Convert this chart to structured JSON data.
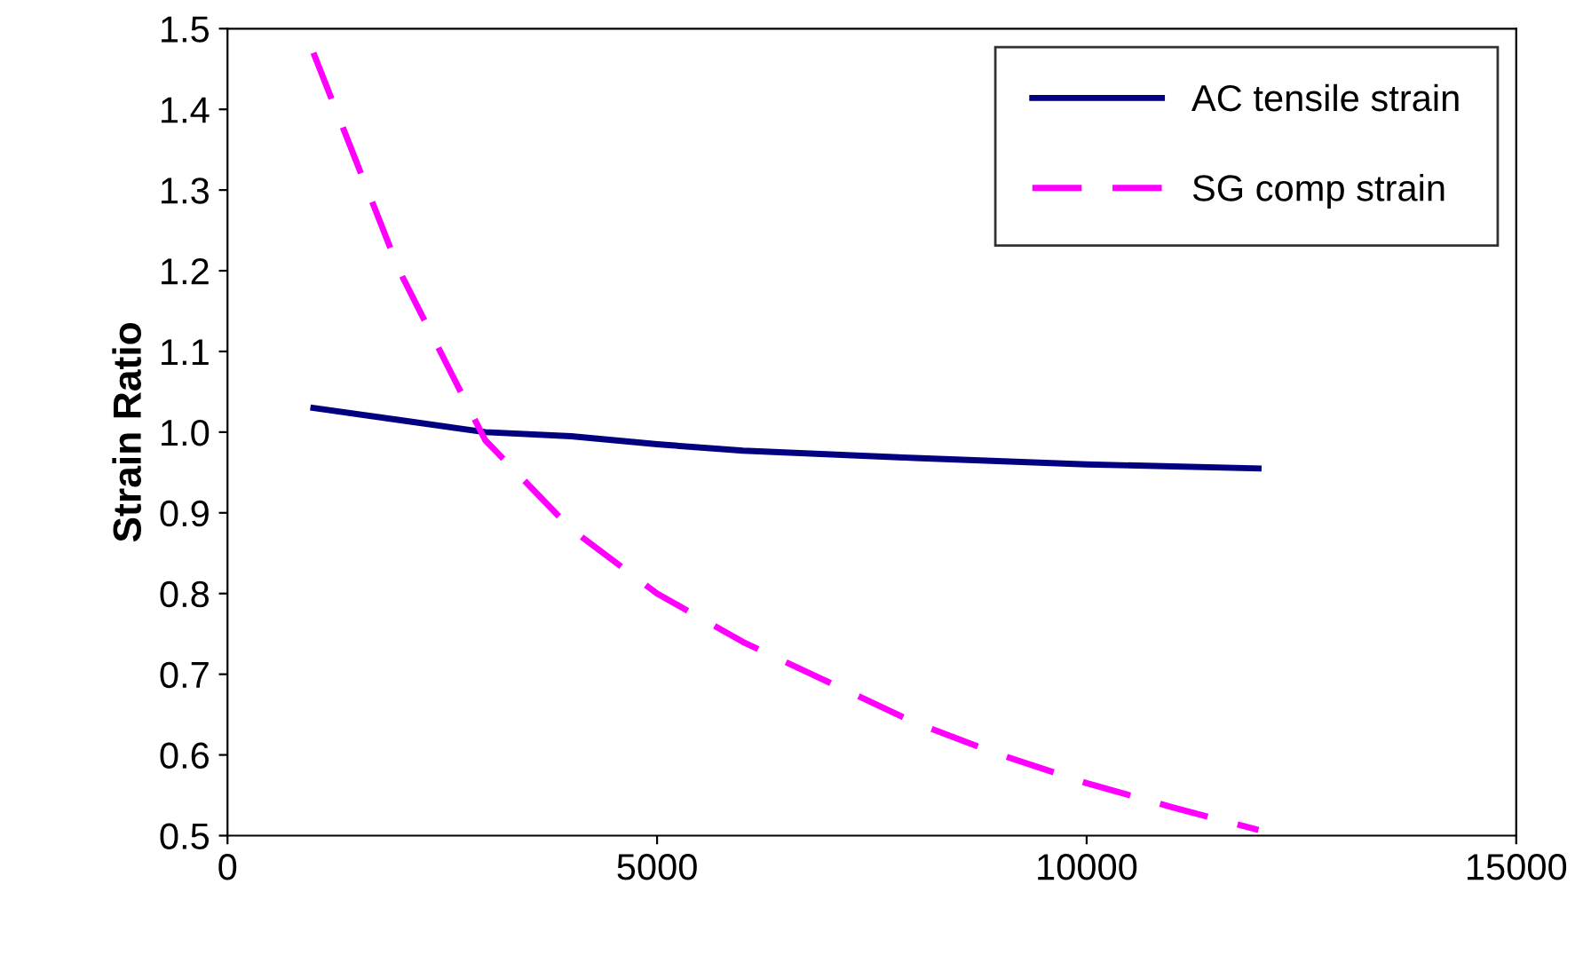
{
  "chart_data": {
    "type": "line",
    "ylabel": "Strain Ratio",
    "xlim": [
      0,
      15000
    ],
    "xticks": [
      0,
      5000,
      10000,
      15000
    ],
    "ylim": [
      0.5,
      1.5
    ],
    "yticks": [
      0.5,
      0.6,
      0.7,
      0.8,
      0.9,
      {
        "value": 1,
        "label": "1.0"
      },
      1.1,
      1.2,
      1.3,
      1.4,
      1.5
    ],
    "grid": false,
    "legend": "top right",
    "series": [
      {
        "name": "AC tensile strain",
        "color": "#000080",
        "line_style": "solid",
        "x": [
          1000,
          2000,
          3000,
          4000,
          5000,
          6000,
          8000,
          10000,
          12000
        ],
        "values": [
          1.03,
          1.015,
          1.0,
          0.995,
          0.985,
          0.977,
          0.968,
          0.96,
          0.955
        ]
      },
      {
        "name": "SG comp strain",
        "color": "#ff00ff",
        "line_style": "dashed",
        "x": [
          1000,
          2000,
          3000,
          4000,
          5000,
          6000,
          7000,
          8000,
          9000,
          10000,
          11000,
          12000
        ],
        "values": [
          1.47,
          1.2,
          0.99,
          0.88,
          0.8,
          0.74,
          0.69,
          0.64,
          0.6,
          0.565,
          0.535,
          0.507
        ]
      }
    ]
  }
}
